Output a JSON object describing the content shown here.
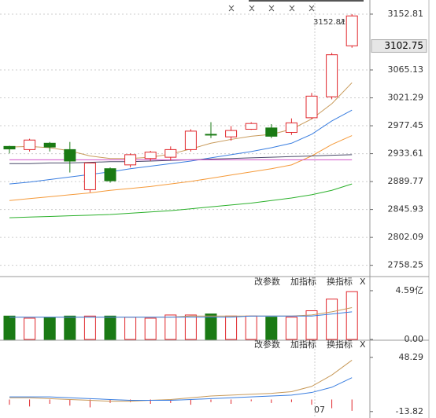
{
  "chart_data": [
    {
      "type": "candlestick",
      "categories": [
        null,
        null,
        null,
        null,
        null,
        null,
        null,
        null,
        null,
        null,
        null,
        null,
        null,
        null,
        null,
        "07",
        null,
        null
      ],
      "open": [
        2945,
        2940,
        2950,
        2940,
        2877,
        2910,
        2916,
        2926,
        2928,
        2940,
        2964,
        2960,
        2972,
        2974,
        2967,
        2990,
        3023,
        3103
      ],
      "high": [
        2946,
        2957,
        2952,
        2952,
        2919,
        2912,
        2934,
        2938,
        2945,
        2972,
        2983,
        2977,
        2983,
        2980,
        2989,
        3029,
        3092,
        3152.81
      ],
      "low": [
        2934,
        2937,
        2937,
        2904,
        2873,
        2888,
        2912,
        2922,
        2923,
        2937,
        2958,
        2954,
        2971,
        2958,
        2963,
        2988,
        3019,
        3100
      ],
      "close": [
        2941,
        2955,
        2944,
        2922,
        2919,
        2891,
        2932,
        2936,
        2940,
        2969,
        2963,
        2970,
        2981,
        2961,
        2982,
        3024,
        3089,
        3150
      ],
      "up_color": "#e0262b",
      "down_color": "#1a7a14",
      "lines": [
        {
          "color": "#c89a5a",
          "values": [
            2944,
            2945,
            2943,
            2938,
            2930,
            2926,
            2926,
            2928,
            2933,
            2941,
            2950,
            2956,
            2961,
            2964,
            2972,
            2988,
            3012,
            3045
          ]
        },
        {
          "color": "#3a7ee0",
          "values": [
            2886,
            2889,
            2893,
            2897,
            2901,
            2905,
            2910,
            2914,
            2918,
            2922,
            2927,
            2932,
            2937,
            2943,
            2950,
            2964,
            2985,
            3002
          ]
        },
        {
          "color": "#f59a3a",
          "values": [
            2860,
            2863,
            2866,
            2869,
            2872,
            2876,
            2879,
            2882,
            2886,
            2890,
            2895,
            2900,
            2905,
            2910,
            2916,
            2930,
            2948,
            2962
          ]
        },
        {
          "color": "#4a4a6a",
          "values": [
            2918,
            2918,
            2919,
            2919,
            2920,
            2921,
            2921,
            2922,
            2923,
            2924,
            2925,
            2926,
            2927,
            2928,
            2929,
            2930,
            2931,
            2932
          ]
        },
        {
          "color": "#d050c8",
          "values": [
            2924,
            2924,
            2924,
            2924,
            2924,
            2924,
            2924,
            2924,
            2924,
            2924,
            2924,
            2924,
            2924,
            2924,
            2924,
            2924,
            2924,
            2924
          ]
        },
        {
          "color": "#2ab02a",
          "values": [
            2833,
            2834,
            2835,
            2836,
            2837,
            2838,
            2840,
            2842,
            2844,
            2847,
            2850,
            2853,
            2856,
            2860,
            2864,
            2869,
            2876,
            2886
          ]
        }
      ],
      "annotation": {
        "value": 3152.81,
        "label": "3152.81"
      },
      "last_price": 3102.75,
      "ylim": [
        2743,
        3175
      ],
      "yticks": [
        3152.81,
        3065.13,
        3021.29,
        2977.45,
        2933.61,
        2889.77,
        2845.93,
        2802.09,
        2758.25
      ],
      "grid": true
    },
    {
      "type": "bar",
      "values": [
        2.2,
        2.0,
        2.1,
        2.2,
        2.2,
        2.2,
        2.1,
        2.0,
        2.3,
        2.3,
        2.4,
        2.2,
        2.2,
        2.1,
        2.1,
        2.7,
        3.8,
        4.5
      ],
      "lines": [
        {
          "color": "#c89a5a",
          "values": [
            2.1,
            2.1,
            2.1,
            2.1,
            2.1,
            2.1,
            2.1,
            2.1,
            2.1,
            2.2,
            2.2,
            2.2,
            2.2,
            2.2,
            2.2,
            2.3,
            2.6,
            3.0
          ]
        },
        {
          "color": "#3a7ee0",
          "values": [
            2.1,
            2.1,
            2.1,
            2.1,
            2.1,
            2.1,
            2.1,
            2.1,
            2.1,
            2.1,
            2.1,
            2.1,
            2.2,
            2.2,
            2.2,
            2.2,
            2.4,
            2.6
          ]
        }
      ],
      "ylim": [
        0,
        5.55
      ],
      "yticks": [
        {
          "value": 4.59,
          "label": "4.59亿"
        },
        {
          "value": 0,
          "label": "0.00"
        }
      ],
      "buttons": [
        "改参数",
        "加指标",
        "换指标",
        "X"
      ]
    },
    {
      "type": "line",
      "series": [
        {
          "type": "bar",
          "color": "#e0262b",
          "values": [
            -6,
            -8,
            -5,
            -7,
            -9,
            -4,
            -3,
            -5,
            -4,
            -6,
            -3,
            -5,
            -2,
            -4,
            -3,
            -6,
            -10,
            -13
          ]
        },
        {
          "type": "line",
          "color": "#c89a5a",
          "values": [
            2,
            2,
            1,
            0,
            -1,
            -2,
            -2,
            -1,
            0,
            2,
            4,
            5,
            6,
            7,
            9,
            15,
            28,
            45
          ]
        },
        {
          "type": "line",
          "color": "#3a7ee0",
          "values": [
            3,
            3,
            3,
            2,
            1,
            0,
            -1,
            -1,
            -1,
            0,
            1,
            2,
            3,
            4,
            5,
            8,
            14,
            25
          ]
        }
      ],
      "ylim": [
        -19.4,
        64.3
      ],
      "yticks": [
        48.29,
        -13.82
      ],
      "buttons": [
        "改参数",
        "加指标",
        "换指标",
        "X"
      ]
    }
  ]
}
